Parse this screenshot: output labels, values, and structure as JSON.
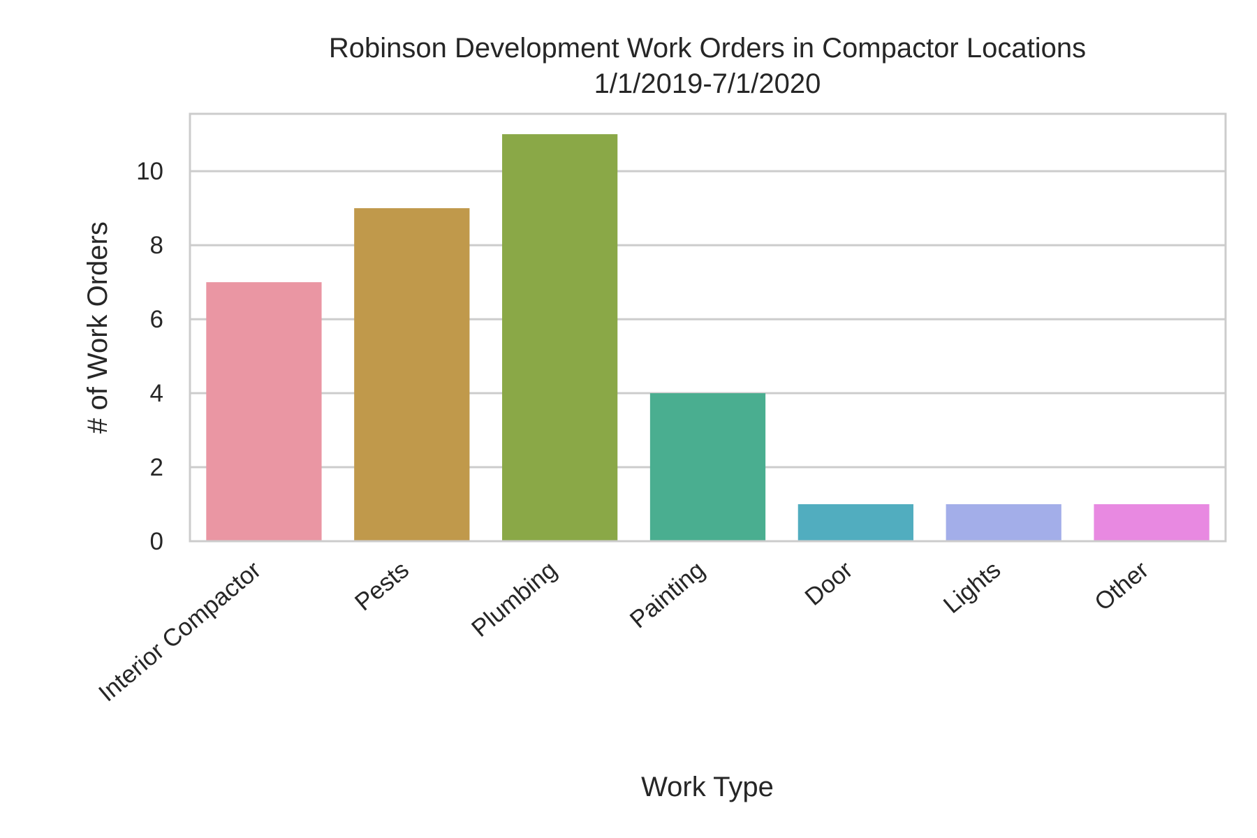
{
  "chart_data": {
    "type": "bar",
    "title": "Robinson Development Work Orders in Compactor Locations",
    "subtitle": "1/1/2019-7/1/2020",
    "xlabel": "Work Type",
    "ylabel": "# of Work Orders",
    "categories": [
      "Interior Compactor",
      "Pests",
      "Plumbing",
      "Painting",
      "Door",
      "Lights",
      "Other"
    ],
    "values": [
      7,
      9,
      11,
      4,
      1,
      1,
      1
    ],
    "colors": [
      "#ea96a3",
      "#c0994b",
      "#8aa847",
      "#4aae90",
      "#51adbf",
      "#a3aee9",
      "#e889e1"
    ],
    "ylim": [
      0,
      11.55
    ],
    "yticks": [
      0,
      2,
      4,
      6,
      8,
      10
    ],
    "grid": true,
    "grid_color": "#cccccc",
    "spine_color": "#cccccc"
  }
}
